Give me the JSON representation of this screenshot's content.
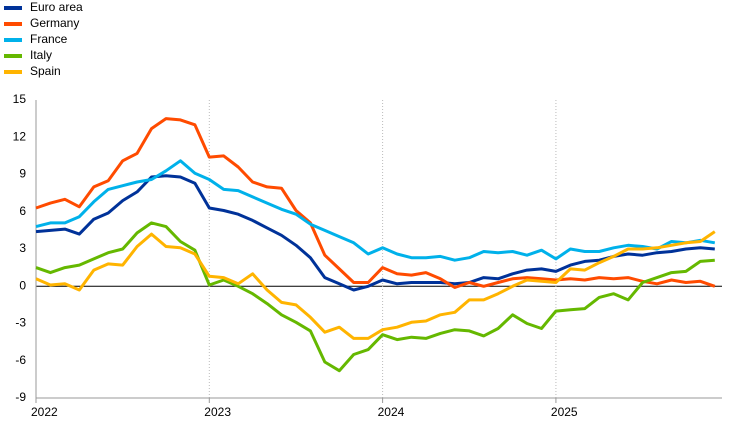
{
  "chart_data": {
    "type": "line",
    "categories": [
      "2022",
      null,
      null,
      null,
      null,
      null,
      null,
      null,
      null,
      null,
      null,
      null,
      "2023",
      null,
      null,
      null,
      null,
      null,
      null,
      null,
      null,
      null,
      null,
      null,
      "2024",
      null,
      null,
      null,
      null,
      null,
      null,
      null,
      null,
      null,
      null,
      null,
      "2025",
      null,
      null,
      null,
      null,
      null,
      null,
      null,
      null,
      null,
      null,
      null
    ],
    "ylim": [
      -9,
      15
    ],
    "yticks": [
      -9,
      -6,
      -3,
      0,
      3,
      6,
      9,
      12,
      15
    ],
    "grid": true,
    "legend": "top-left",
    "series": [
      {
        "name": "Euro area",
        "color": "#003299",
        "values": [
          4.4,
          4.5,
          4.6,
          4.2,
          5.4,
          5.9,
          6.9,
          7.6,
          8.8,
          8.9,
          8.8,
          8.3,
          6.3,
          6.1,
          5.8,
          5.3,
          4.7,
          4.1,
          3.3,
          2.3,
          0.7,
          0.2,
          -0.3,
          0.0,
          0.5,
          0.2,
          0.3,
          0.3,
          0.3,
          0.2,
          0.3,
          0.7,
          0.6,
          1.0,
          1.3,
          1.4,
          1.2,
          1.7,
          2.0,
          2.1,
          2.4,
          2.6,
          2.5,
          2.7,
          2.8,
          3.0,
          3.1,
          3.0
        ]
      },
      {
        "name": "Germany",
        "color": "#ff4b00",
        "values": [
          6.3,
          6.7,
          7.0,
          6.4,
          8.0,
          8.5,
          10.1,
          10.7,
          12.7,
          13.5,
          13.4,
          13.0,
          10.4,
          10.5,
          9.6,
          8.4,
          8.0,
          7.9,
          6.1,
          5.1,
          2.5,
          1.4,
          0.3,
          0.3,
          1.5,
          1.0,
          0.9,
          1.1,
          0.6,
          -0.1,
          0.3,
          0.0,
          0.3,
          0.6,
          0.7,
          0.6,
          0.5,
          0.6,
          0.5,
          0.7,
          0.6,
          0.7,
          0.4,
          0.2,
          0.5,
          0.3,
          0.4,
          0.0
        ]
      },
      {
        "name": "France",
        "color": "#00b1ea",
        "values": [
          4.8,
          5.1,
          5.1,
          5.6,
          6.8,
          7.8,
          8.1,
          8.4,
          8.6,
          9.3,
          10.1,
          9.1,
          8.6,
          7.8,
          7.7,
          7.2,
          6.7,
          6.2,
          5.8,
          5.0,
          4.5,
          4.0,
          3.5,
          2.6,
          3.1,
          2.6,
          2.3,
          2.3,
          2.4,
          2.1,
          2.3,
          2.8,
          2.7,
          2.8,
          2.5,
          2.9,
          2.2,
          3.0,
          2.8,
          2.8,
          3.1,
          3.3,
          3.2,
          3.0,
          3.6,
          3.5,
          3.7,
          3.5
        ]
      },
      {
        "name": "Italy",
        "color": "#65b800",
        "values": [
          1.5,
          1.1,
          1.5,
          1.7,
          2.2,
          2.7,
          3.0,
          4.3,
          5.1,
          4.8,
          3.6,
          2.9,
          0.1,
          0.5,
          0.0,
          -0.6,
          -1.4,
          -2.3,
          -2.9,
          -3.6,
          -6.1,
          -6.8,
          -5.5,
          -5.1,
          -3.9,
          -4.3,
          -4.1,
          -4.2,
          -3.8,
          -3.5,
          -3.6,
          -4.0,
          -3.4,
          -2.3,
          -3.0,
          -3.4,
          -2.0,
          -1.9,
          -1.8,
          -0.9,
          -0.6,
          -1.1,
          0.3,
          0.7,
          1.1,
          1.2,
          2.0,
          2.1
        ]
      },
      {
        "name": "Spain",
        "color": "#ffb400",
        "values": [
          0.6,
          0.1,
          0.2,
          -0.3,
          1.3,
          1.8,
          1.7,
          3.2,
          4.2,
          3.2,
          3.1,
          2.6,
          0.8,
          0.7,
          0.2,
          1.0,
          -0.3,
          -1.3,
          -1.5,
          -2.5,
          -3.7,
          -3.3,
          -4.2,
          -4.2,
          -3.5,
          -3.3,
          -2.9,
          -2.8,
          -2.3,
          -2.1,
          -1.1,
          -1.1,
          -0.6,
          0.0,
          0.5,
          0.4,
          0.3,
          1.4,
          1.3,
          1.9,
          2.4,
          3.0,
          3.0,
          3.1,
          3.3,
          3.5,
          3.6,
          4.4
        ]
      }
    ]
  }
}
